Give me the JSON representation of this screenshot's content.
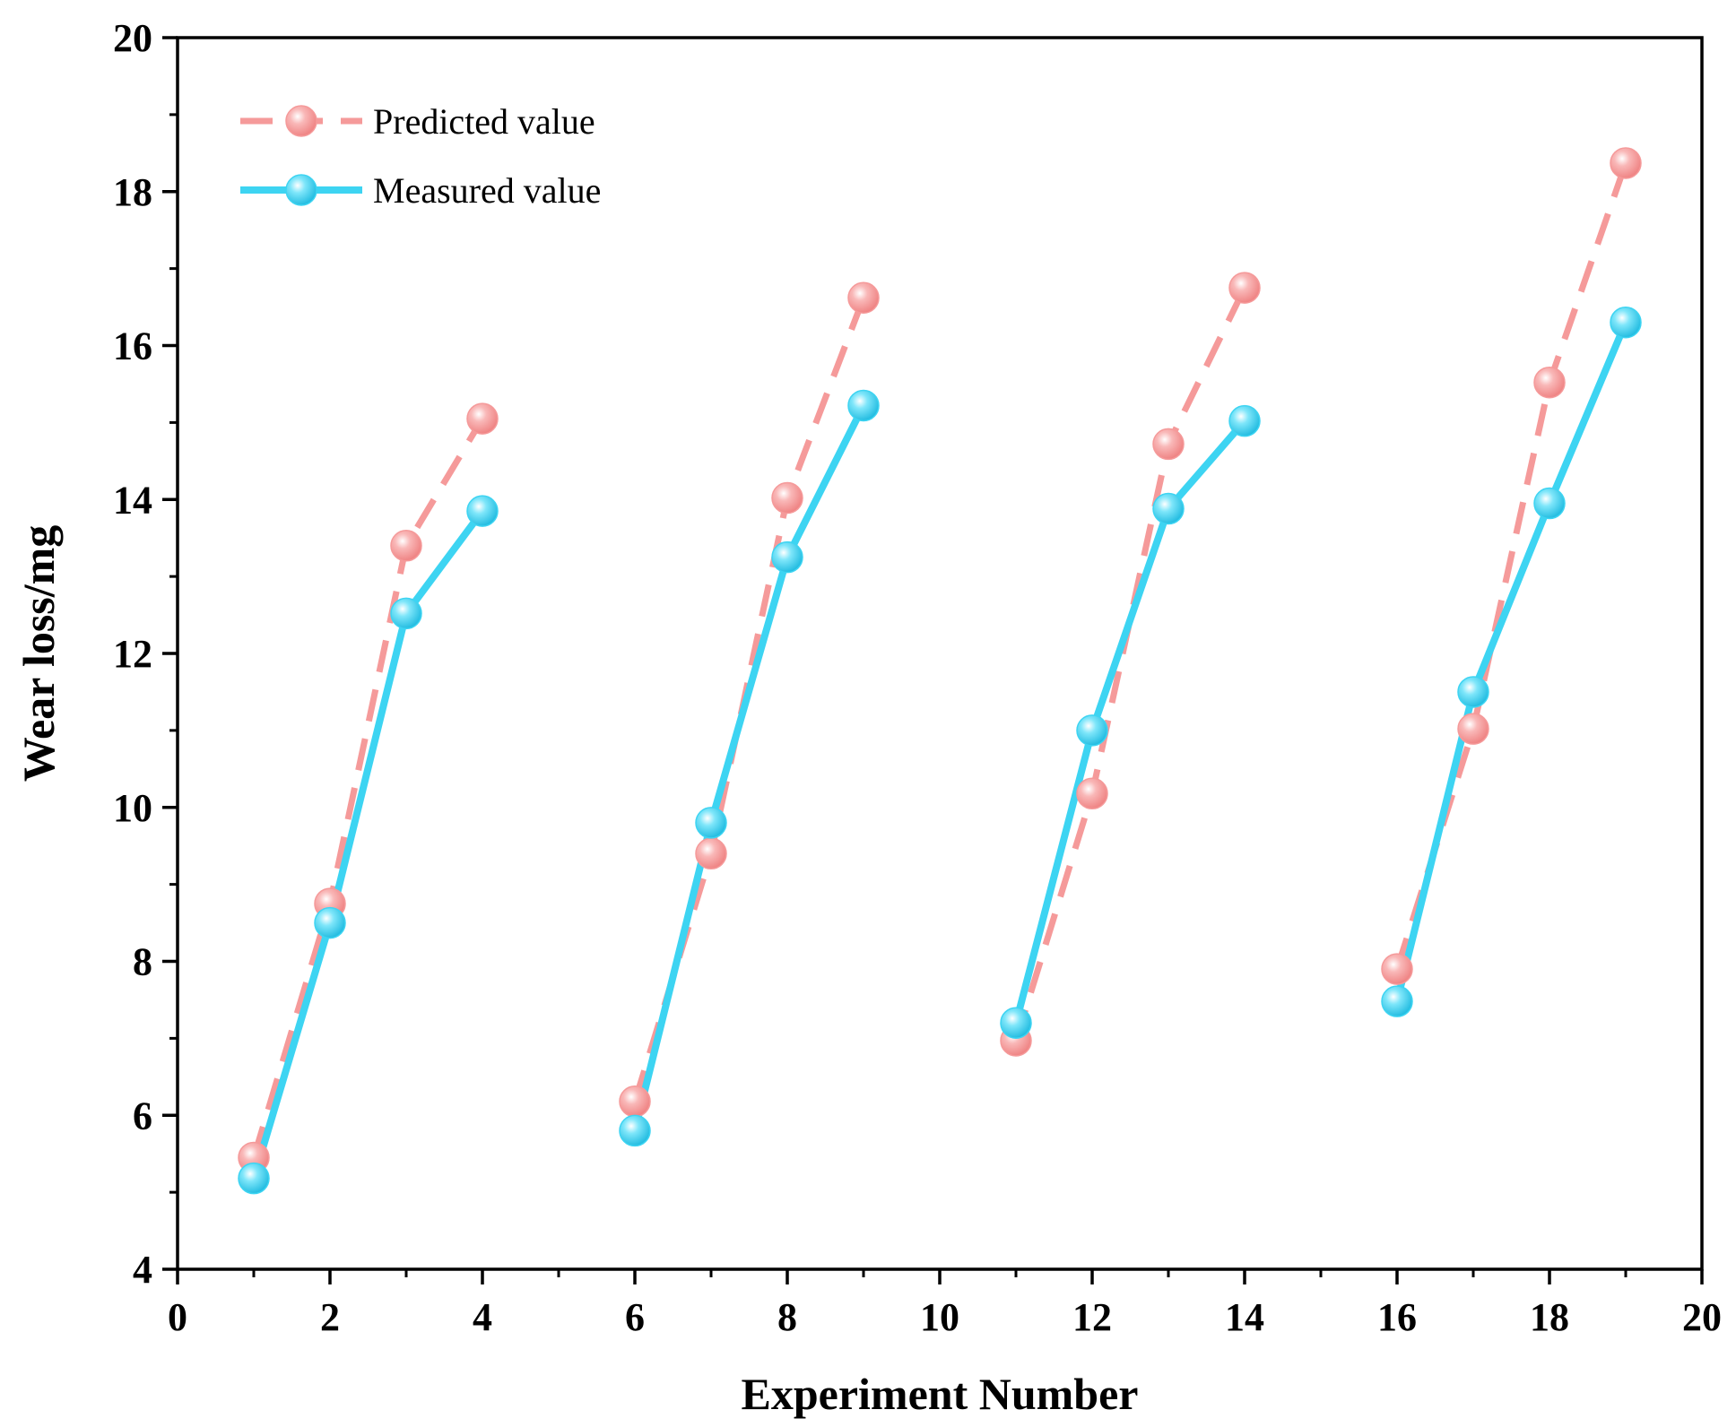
{
  "chart_data": {
    "type": "line",
    "title": "",
    "xlabel": "Experiment Number",
    "ylabel": "Wear loss/mg",
    "xlim": [
      0,
      20
    ],
    "ylim": [
      4,
      20
    ],
    "xticks": [
      0,
      2,
      4,
      6,
      8,
      10,
      12,
      14,
      16,
      18,
      20
    ],
    "yticks": [
      4,
      6,
      8,
      10,
      12,
      14,
      16,
      18,
      20
    ],
    "grid": false,
    "legend_position": "top-left",
    "series": [
      {
        "name": "Predicted value",
        "color": "#F59A9A",
        "style": "dashed",
        "groups": [
          {
            "x": [
              1,
              2,
              3,
              4
            ],
            "y": [
              5.45,
              8.75,
              13.4,
              15.05
            ]
          },
          {
            "x": [
              6,
              7,
              8,
              9
            ],
            "y": [
              6.18,
              9.4,
              14.02,
              16.62
            ]
          },
          {
            "x": [
              11,
              12,
              13,
              14
            ],
            "y": [
              6.97,
              10.18,
              14.72,
              16.75
            ]
          },
          {
            "x": [
              16,
              17,
              18,
              19
            ],
            "y": [
              7.9,
              11.02,
              15.52,
              18.37
            ]
          }
        ]
      },
      {
        "name": "Measured value",
        "color": "#3DD4F2",
        "style": "solid",
        "groups": [
          {
            "x": [
              1,
              2,
              3,
              4
            ],
            "y": [
              5.18,
              8.5,
              12.52,
              13.85
            ]
          },
          {
            "x": [
              6,
              7,
              8,
              9
            ],
            "y": [
              5.8,
              9.8,
              13.25,
              15.22
            ]
          },
          {
            "x": [
              11,
              12,
              13,
              14
            ],
            "y": [
              7.2,
              11.0,
              13.88,
              15.02
            ]
          },
          {
            "x": [
              16,
              17,
              18,
              19
            ],
            "y": [
              7.48,
              11.5,
              13.95,
              16.3
            ]
          }
        ]
      }
    ]
  }
}
